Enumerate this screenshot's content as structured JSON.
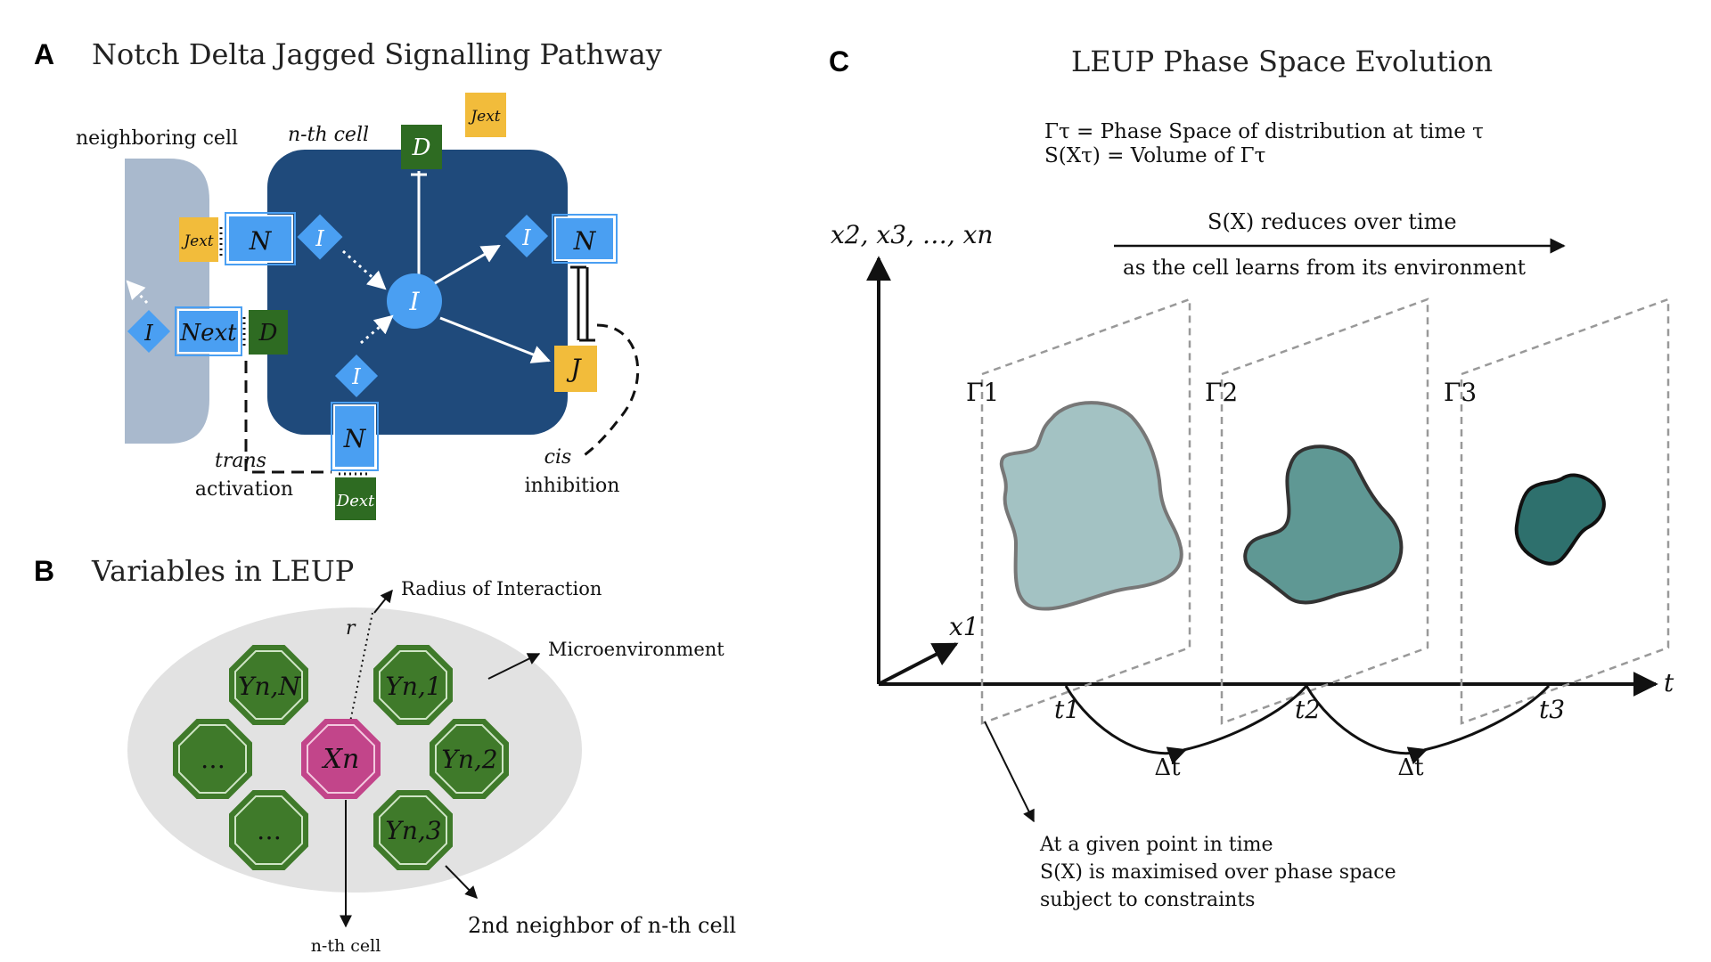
{
  "panels": {
    "a": {
      "letter": "A",
      "title": "Notch Delta Jagged Signalling Pathway",
      "neighboring_cell_label": "neighboring cell",
      "nth_cell_label": "n-th cell",
      "nodes": {
        "D": "D",
        "N": "N",
        "I": "I",
        "J": "J",
        "N_ext": "Next",
        "J_ext": "Jext",
        "D_ext": "Dext"
      },
      "trans_label_1": "trans",
      "trans_label_2": "activation",
      "cis_label_1": "cis",
      "cis_label_2": "inhibition"
    },
    "b": {
      "letter": "B",
      "title": "Variables in LEUP",
      "radius_label": "Radius of Interaction",
      "r_label": "r",
      "microenvironment_label": "Microenvironment",
      "second_neighbor_label": "2nd neighbor of n-th cell",
      "nth_cell_label": "n-th cell",
      "cells": {
        "x_n": "Xn",
        "y_nN": "Yn,N",
        "y_n1": "Yn,1",
        "y_n2": "Yn,2",
        "y_n3": "Yn,3",
        "dots_1": "…",
        "dots_2": "…"
      }
    },
    "c": {
      "letter": "C",
      "title": "LEUP Phase Space Evolution",
      "def_line_1": "Γτ = Phase Space of distribution at time τ",
      "def_line_2": "S(Xτ) = Volume of Γτ",
      "reduces_label": "S(X) reduces over time",
      "learns_label": "as the cell learns from its environment",
      "y_axis_label": "x2, x3, …, xn",
      "x1_label": "x1",
      "t_axis_label": "t",
      "gammas": [
        "Γ1",
        "Γ2",
        "Γ3"
      ],
      "times": [
        "t1",
        "t2",
        "t3"
      ],
      "delta_t": "Δt",
      "note_line_1": "At a given point in time",
      "note_line_2": "S(X) is maximised over phase space",
      "note_line_3": "subject to constraints"
    }
  },
  "colors": {
    "cell_blue": "#1f4a7b",
    "neighbor_gray": "#a9b9cd",
    "notch_blue": "#4a9ff2",
    "delta_green": "#2e6b22",
    "jagged_yellow": "#f2bc3b",
    "microenv_gray": "#e2e2e2",
    "octagon_green": "#3f7a2a",
    "xn_pink": "#c2458a",
    "blob_1": "#a3c2c3",
    "blob_2": "#5f9894",
    "blob_3": "#2e706d"
  }
}
